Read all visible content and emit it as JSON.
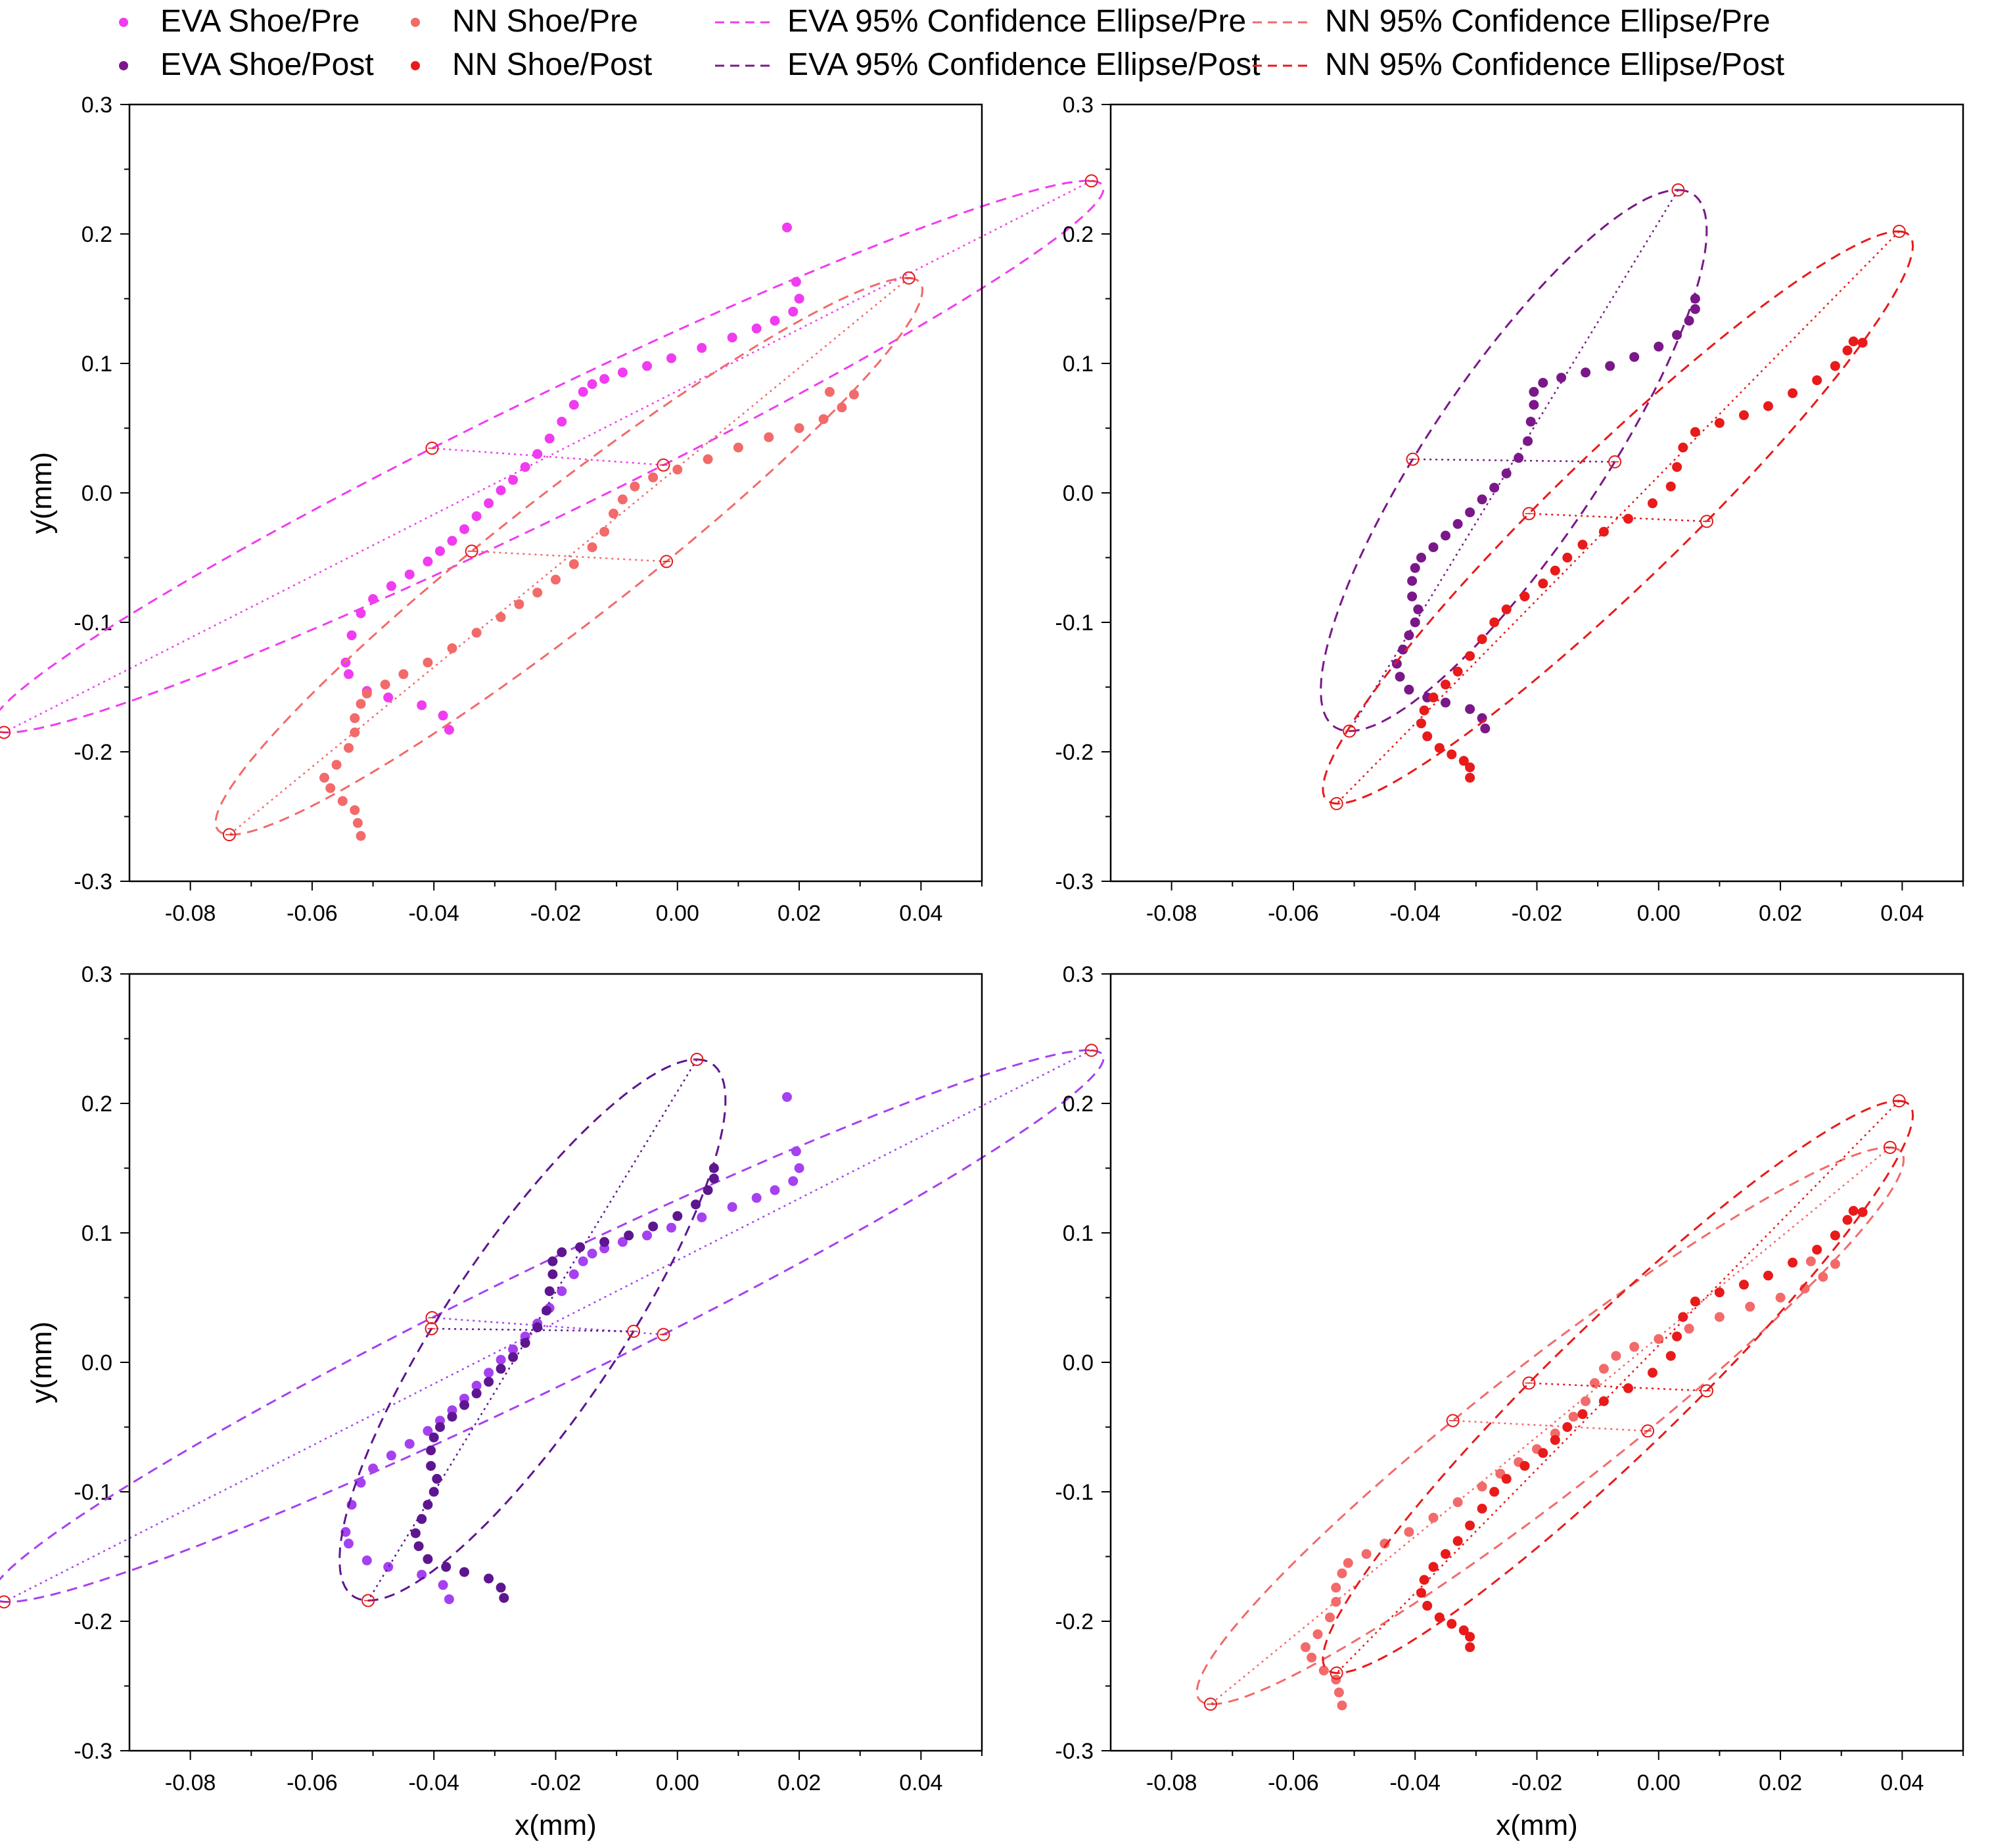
{
  "chart_data": {
    "type": "scatter",
    "xlabel": "x(mm)",
    "ylabel": "y(mm)",
    "xlim": [
      -0.09,
      0.05
    ],
    "ylim": [
      -0.3,
      0.3
    ],
    "xticks": [
      "-0.08",
      "-0.06",
      "-0.04",
      "-0.02",
      "0.00",
      "0.02",
      "0.04"
    ],
    "yticks": [
      "0.3",
      "0.2",
      "0.1",
      "0.0",
      "-0.1",
      "-0.2",
      "-0.3"
    ],
    "legend": {
      "position": "top",
      "items": [
        {
          "key": "eva_pre",
          "kind": "point",
          "label": "EVA Shoe/Pre"
        },
        {
          "key": "nn_pre",
          "kind": "point",
          "label": "NN Shoe/Pre"
        },
        {
          "key": "eva_pre",
          "kind": "ellipse",
          "label": "EVA 95% Confidence Ellipse/Pre"
        },
        {
          "key": "nn_pre",
          "kind": "ellipse",
          "label": "NN 95% Confidence Ellipse/Pre"
        },
        {
          "key": "eva_post",
          "kind": "point",
          "label": "EVA Shoe/Post"
        },
        {
          "key": "nn_post",
          "kind": "point",
          "label": "NN Shoe/Post"
        },
        {
          "key": "eva_post",
          "kind": "ellipse",
          "label": "EVA 95% Confidence Ellipse/Post"
        },
        {
          "key": "nn_post",
          "kind": "ellipse",
          "label": "NN 95% Confidence Ellipse/Post"
        }
      ]
    },
    "series": {
      "eva_pre": {
        "name": "EVA Shoe/Pre",
        "color": "#f03cf0",
        "points": [
          [
            -0.0545,
            -0.131
          ],
          [
            -0.051,
            -0.153
          ],
          [
            -0.0475,
            -0.158
          ],
          [
            -0.042,
            -0.164
          ],
          [
            -0.0385,
            -0.172
          ],
          [
            -0.0375,
            -0.183
          ],
          [
            -0.054,
            -0.14
          ],
          [
            -0.0535,
            -0.11
          ],
          [
            -0.052,
            -0.093
          ],
          [
            -0.05,
            -0.082
          ],
          [
            -0.047,
            -0.072
          ],
          [
            -0.044,
            -0.063
          ],
          [
            -0.041,
            -0.053
          ],
          [
            -0.039,
            -0.045
          ],
          [
            -0.037,
            -0.037
          ],
          [
            -0.035,
            -0.028
          ],
          [
            -0.033,
            -0.018
          ],
          [
            -0.031,
            -0.008
          ],
          [
            -0.029,
            0.002
          ],
          [
            -0.027,
            0.01
          ],
          [
            -0.025,
            0.02
          ],
          [
            -0.023,
            0.03
          ],
          [
            -0.021,
            0.042
          ],
          [
            -0.019,
            0.055
          ],
          [
            -0.017,
            0.068
          ],
          [
            -0.0155,
            0.078
          ],
          [
            -0.014,
            0.084
          ],
          [
            -0.012,
            0.088
          ],
          [
            -0.009,
            0.093
          ],
          [
            -0.005,
            0.098
          ],
          [
            -0.001,
            0.104
          ],
          [
            0.004,
            0.112
          ],
          [
            0.009,
            0.12
          ],
          [
            0.013,
            0.127
          ],
          [
            0.016,
            0.133
          ],
          [
            0.019,
            0.14
          ],
          [
            0.02,
            0.15
          ],
          [
            0.0195,
            0.163
          ],
          [
            0.018,
            0.205
          ]
        ],
        "ellipse": {
          "cx": -0.0213,
          "cy": 0.028,
          "axes": [
            [
              0.0893,
              0.213
            ],
            [
              0.019,
              -0.0065
            ]
          ]
        }
      },
      "nn_pre": {
        "name": "NN Shoe/Pre",
        "color": "#f26a6a",
        "points": [
          [
            -0.052,
            -0.265
          ],
          [
            -0.0525,
            -0.255
          ],
          [
            -0.053,
            -0.245
          ],
          [
            -0.055,
            -0.238
          ],
          [
            -0.057,
            -0.228
          ],
          [
            -0.058,
            -0.22
          ],
          [
            -0.056,
            -0.21
          ],
          [
            -0.054,
            -0.197
          ],
          [
            -0.053,
            -0.185
          ],
          [
            -0.053,
            -0.174
          ],
          [
            -0.052,
            -0.163
          ],
          [
            -0.051,
            -0.155
          ],
          [
            -0.048,
            -0.148
          ],
          [
            -0.045,
            -0.14
          ],
          [
            -0.041,
            -0.131
          ],
          [
            -0.037,
            -0.12
          ],
          [
            -0.033,
            -0.108
          ],
          [
            -0.029,
            -0.096
          ],
          [
            -0.026,
            -0.086
          ],
          [
            -0.023,
            -0.077
          ],
          [
            -0.02,
            -0.067
          ],
          [
            -0.017,
            -0.055
          ],
          [
            -0.014,
            -0.042
          ],
          [
            -0.012,
            -0.03
          ],
          [
            -0.0105,
            -0.016
          ],
          [
            -0.009,
            -0.005
          ],
          [
            -0.007,
            0.005
          ],
          [
            -0.004,
            0.012
          ],
          [
            0.0,
            0.018
          ],
          [
            0.005,
            0.026
          ],
          [
            0.01,
            0.035
          ],
          [
            0.015,
            0.043
          ],
          [
            0.02,
            0.05
          ],
          [
            0.024,
            0.057
          ],
          [
            0.027,
            0.066
          ],
          [
            0.029,
            0.076
          ],
          [
            0.025,
            0.078
          ]
        ],
        "ellipse": {
          "cx": -0.0178,
          "cy": -0.049,
          "axes": [
            [
              0.0558,
              0.215
            ],
            [
              0.016,
              -0.004
            ]
          ]
        }
      },
      "eva_post": {
        "name": "EVA Shoe/Post",
        "color": "#7a1789",
        "points": [
          [
            -0.0285,
            -0.182
          ],
          [
            -0.029,
            -0.174
          ],
          [
            -0.031,
            -0.167
          ],
          [
            -0.035,
            -0.162
          ],
          [
            -0.038,
            -0.158
          ],
          [
            -0.041,
            -0.152
          ],
          [
            -0.0425,
            -0.142
          ],
          [
            -0.043,
            -0.132
          ],
          [
            -0.042,
            -0.121
          ],
          [
            -0.041,
            -0.11
          ],
          [
            -0.04,
            -0.1
          ],
          [
            -0.0395,
            -0.09
          ],
          [
            -0.0405,
            -0.08
          ],
          [
            -0.0405,
            -0.068
          ],
          [
            -0.04,
            -0.058
          ],
          [
            -0.039,
            -0.05
          ],
          [
            -0.037,
            -0.042
          ],
          [
            -0.035,
            -0.033
          ],
          [
            -0.033,
            -0.024
          ],
          [
            -0.031,
            -0.015
          ],
          [
            -0.029,
            -0.005
          ],
          [
            -0.027,
            0.004
          ],
          [
            -0.025,
            0.015
          ],
          [
            -0.023,
            0.027
          ],
          [
            -0.0215,
            0.04
          ],
          [
            -0.021,
            0.055
          ],
          [
            -0.0205,
            0.068
          ],
          [
            -0.0205,
            0.078
          ],
          [
            -0.019,
            0.085
          ],
          [
            -0.016,
            0.089
          ],
          [
            -0.012,
            0.093
          ],
          [
            -0.008,
            0.098
          ],
          [
            -0.004,
            0.105
          ],
          [
            0.0,
            0.113
          ],
          [
            0.003,
            0.122
          ],
          [
            0.005,
            0.133
          ],
          [
            0.006,
            0.142
          ],
          [
            0.006,
            0.15
          ]
        ],
        "ellipse": {
          "cx": -0.0238,
          "cy": 0.025,
          "axes": [
            [
              0.027,
              0.209
            ],
            [
              0.0166,
              -0.001
            ]
          ]
        }
      },
      "nn_post": {
        "name": "NN Shoe/Post",
        "color": "#e81a1a",
        "points": [
          [
            -0.031,
            -0.22
          ],
          [
            -0.031,
            -0.212
          ],
          [
            -0.032,
            -0.207
          ],
          [
            -0.034,
            -0.202
          ],
          [
            -0.036,
            -0.197
          ],
          [
            -0.038,
            -0.188
          ],
          [
            -0.039,
            -0.178
          ],
          [
            -0.0385,
            -0.168
          ],
          [
            -0.037,
            -0.158
          ],
          [
            -0.035,
            -0.148
          ],
          [
            -0.033,
            -0.138
          ],
          [
            -0.031,
            -0.126
          ],
          [
            -0.029,
            -0.113
          ],
          [
            -0.027,
            -0.1
          ],
          [
            -0.025,
            -0.09
          ],
          [
            -0.022,
            -0.08
          ],
          [
            -0.019,
            -0.07
          ],
          [
            -0.017,
            -0.06
          ],
          [
            -0.015,
            -0.05
          ],
          [
            -0.0125,
            -0.04
          ],
          [
            -0.009,
            -0.03
          ],
          [
            -0.005,
            -0.02
          ],
          [
            -0.001,
            -0.008
          ],
          [
            0.002,
            0.005
          ],
          [
            0.003,
            0.02
          ],
          [
            0.004,
            0.035
          ],
          [
            0.006,
            0.047
          ],
          [
            0.01,
            0.054
          ],
          [
            0.014,
            0.06
          ],
          [
            0.018,
            0.067
          ],
          [
            0.022,
            0.077
          ],
          [
            0.026,
            0.087
          ],
          [
            0.029,
            0.098
          ],
          [
            0.031,
            0.11
          ],
          [
            0.032,
            0.117
          ],
          [
            0.0335,
            0.116
          ]
        ],
        "ellipse": {
          "cx": -0.0067,
          "cy": -0.019,
          "axes": [
            [
              0.0462,
              0.221
            ],
            [
              0.0146,
              -0.003
            ]
          ]
        }
      }
    },
    "panels": [
      {
        "name": "top-left",
        "series": [
          "eva_pre",
          "nn_pre"
        ]
      },
      {
        "name": "top-right",
        "series": [
          "eva_post",
          "nn_post"
        ]
      },
      {
        "name": "bottom-left",
        "series": [
          "eva_pre",
          "eva_post"
        ],
        "color_overrides": {
          "eva_pre": "#a541f0",
          "eva_post": "#5d168f"
        }
      },
      {
        "name": "bottom-right",
        "series": [
          "nn_pre",
          "nn_post"
        ]
      }
    ]
  }
}
